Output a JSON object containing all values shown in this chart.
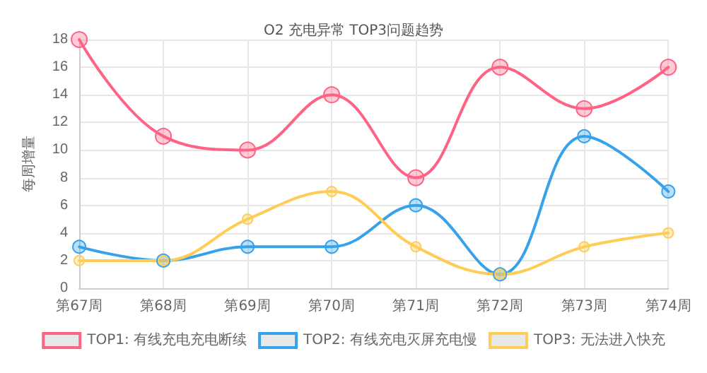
{
  "chart_data": {
    "type": "line",
    "title": "O2 充电异常 TOP3问题趋势",
    "ylabel": "每周增量",
    "categories": [
      "第67周",
      "第68周",
      "第69周",
      "第70周",
      "第71周",
      "第72周",
      "第73周",
      "第74周"
    ],
    "series": [
      {
        "name": "TOP1: 有线充电充电断续",
        "color": "#ff6384",
        "values": [
          18,
          11,
          10,
          14,
          8,
          16,
          13,
          16
        ]
      },
      {
        "name": "TOP2: 有线充电灭屏充电慢",
        "color": "#36a2eb",
        "values": [
          3,
          2,
          3,
          3,
          6,
          1,
          11,
          7
        ]
      },
      {
        "name": "TOP3: 无法进入快充",
        "color": "#ffcd56",
        "values": [
          2,
          2,
          5,
          7,
          3,
          1,
          3,
          4
        ]
      }
    ],
    "ylim": [
      0,
      18
    ],
    "yticks": [
      0,
      2,
      4,
      6,
      8,
      10,
      12,
      14,
      16,
      18
    ],
    "grid": true,
    "legend": "bottom",
    "marker": "circle",
    "line_style": "solid"
  }
}
